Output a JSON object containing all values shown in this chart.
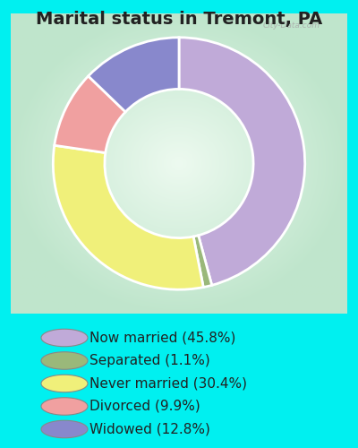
{
  "title": "Marital status in Tremont, PA",
  "slices": [
    45.8,
    1.1,
    30.4,
    9.9,
    12.8
  ],
  "labels": [
    "Now married (45.8%)",
    "Separated (1.1%)",
    "Never married (30.4%)",
    "Divorced (9.9%)",
    "Widowed (12.8%)"
  ],
  "colors": [
    "#c0aad8",
    "#9ab87a",
    "#f0f07a",
    "#f0a0a0",
    "#8888cc"
  ],
  "bg_cyan": "#00f0f0",
  "chart_bg_center": "#f0faf0",
  "chart_bg_edge": "#c8e8d0",
  "watermark": "City-Data.com",
  "title_fontsize": 14,
  "legend_fontsize": 11
}
